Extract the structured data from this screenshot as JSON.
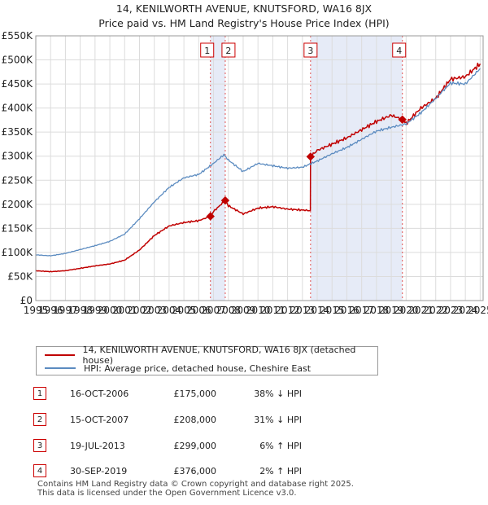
{
  "title_line1": "14, KENILWORTH AVENUE, KNUTSFORD, WA16 8JX",
  "title_line2": "Price paid vs. HM Land Registry's House Price Index (HPI)",
  "chart_data": {
    "type": "line",
    "title": "14, KENILWORTH AVENUE, KNUTSFORD, WA16 8JX — Price paid vs. HM Land Registry's House Price Index (HPI)",
    "xlabel": "",
    "ylabel": "",
    "xlim": [
      1995,
      2025.2
    ],
    "ylim": [
      0,
      550000
    ],
    "grid": true,
    "legend_position": "bottom",
    "y_ticks": [
      0,
      50000,
      100000,
      150000,
      200000,
      250000,
      300000,
      350000,
      400000,
      450000,
      500000,
      550000
    ],
    "y_tick_labels": [
      "£0",
      "£50K",
      "£100K",
      "£150K",
      "£200K",
      "£250K",
      "£300K",
      "£350K",
      "£400K",
      "£450K",
      "£500K",
      "£550K"
    ],
    "x_ticks": [
      1995,
      1996,
      1997,
      1998,
      1999,
      2000,
      2001,
      2002,
      2003,
      2004,
      2005,
      2006,
      2007,
      2008,
      2009,
      2010,
      2011,
      2012,
      2013,
      2014,
      2015,
      2016,
      2017,
      2018,
      2019,
      2020,
      2021,
      2022,
      2023,
      2024,
      2025
    ],
    "x_tick_labels": [
      "1995",
      "1996",
      "1997",
      "1998",
      "1999",
      "2000",
      "2001",
      "2002",
      "2003",
      "2004",
      "2005",
      "2006",
      "2007",
      "2008",
      "2009",
      "2010",
      "2011",
      "2012",
      "2013",
      "2014",
      "2015",
      "2016",
      "2017",
      "2018",
      "2019",
      "2020",
      "2021",
      "2022",
      "2023",
      "2024",
      "2025"
    ],
    "shaded_regions": [
      {
        "from": 2006.79,
        "to": 2007.79
      },
      {
        "from": 2013.55,
        "to": 2019.75
      }
    ],
    "sale_markers": [
      {
        "label": "1",
        "x": 2006.79,
        "y": 175000
      },
      {
        "label": "2",
        "x": 2007.79,
        "y": 208000
      },
      {
        "label": "3",
        "x": 2013.55,
        "y": 299000
      },
      {
        "label": "4",
        "x": 2019.75,
        "y": 376000
      }
    ],
    "series": [
      {
        "name": "14, KENILWORTH AVENUE, KNUTSFORD, WA16 8JX (detached house)",
        "color": "#c00000",
        "x": [
          1995,
          1996,
          1997,
          1998,
          1999,
          2000,
          2001,
          2002,
          2003,
          2004,
          2005,
          2006,
          2006.79,
          2007,
          2007.79,
          2008,
          2009,
          2010,
          2011,
          2012,
          2013,
          2013.54,
          2013.55,
          2014,
          2015,
          2016,
          2017,
          2018,
          2019,
          2019.75,
          2020,
          2021,
          2022,
          2023,
          2024,
          2025
        ],
        "y": [
          62000,
          60000,
          62000,
          67000,
          72000,
          76000,
          84000,
          105000,
          135000,
          155000,
          162000,
          166000,
          175000,
          185000,
          208000,
          197000,
          180000,
          192000,
          195000,
          190000,
          188000,
          187000,
          299000,
          312000,
          325000,
          338000,
          355000,
          372000,
          385000,
          376000,
          368000,
          400000,
          420000,
          460000,
          465000,
          492000
        ]
      },
      {
        "name": "HPI: Average price, detached house, Cheshire East",
        "color": "#5b8bc0",
        "x": [
          1995,
          1996,
          1997,
          1998,
          1999,
          2000,
          2001,
          2002,
          2003,
          2004,
          2005,
          2006,
          2007,
          2007.7,
          2008,
          2009,
          2010,
          2011,
          2012,
          2013,
          2014,
          2015,
          2016,
          2017,
          2018,
          2019,
          2020,
          2021,
          2022,
          2023,
          2024,
          2025
        ],
        "y": [
          95000,
          93000,
          98000,
          106000,
          114000,
          123000,
          138000,
          170000,
          205000,
          235000,
          255000,
          262000,
          285000,
          303000,
          292000,
          268000,
          285000,
          280000,
          275000,
          277000,
          290000,
          305000,
          318000,
          335000,
          352000,
          360000,
          367000,
          390000,
          420000,
          452000,
          450000,
          482000
        ]
      }
    ]
  },
  "legend": {
    "items": [
      {
        "label": "14, KENILWORTH AVENUE, KNUTSFORD, WA16 8JX (detached house)",
        "color": "#c00000"
      },
      {
        "label": "HPI: Average price, detached house, Cheshire East",
        "color": "#5b8bc0"
      }
    ]
  },
  "sales": [
    {
      "num": "1",
      "date": "16-OCT-2006",
      "price": "£175,000",
      "hpi": "38% ↓ HPI"
    },
    {
      "num": "2",
      "date": "15-OCT-2007",
      "price": "£208,000",
      "hpi": "31% ↓ HPI"
    },
    {
      "num": "3",
      "date": "19-JUL-2013",
      "price": "£299,000",
      "hpi": "6% ↑ HPI"
    },
    {
      "num": "4",
      "date": "30-SEP-2019",
      "price": "£376,000",
      "hpi": "2% ↑ HPI"
    }
  ],
  "footer": {
    "line1": "Contains HM Land Registry data © Crown copyright and database right 2025.",
    "line2": "This data is licensed under the Open Government Licence v3.0."
  }
}
